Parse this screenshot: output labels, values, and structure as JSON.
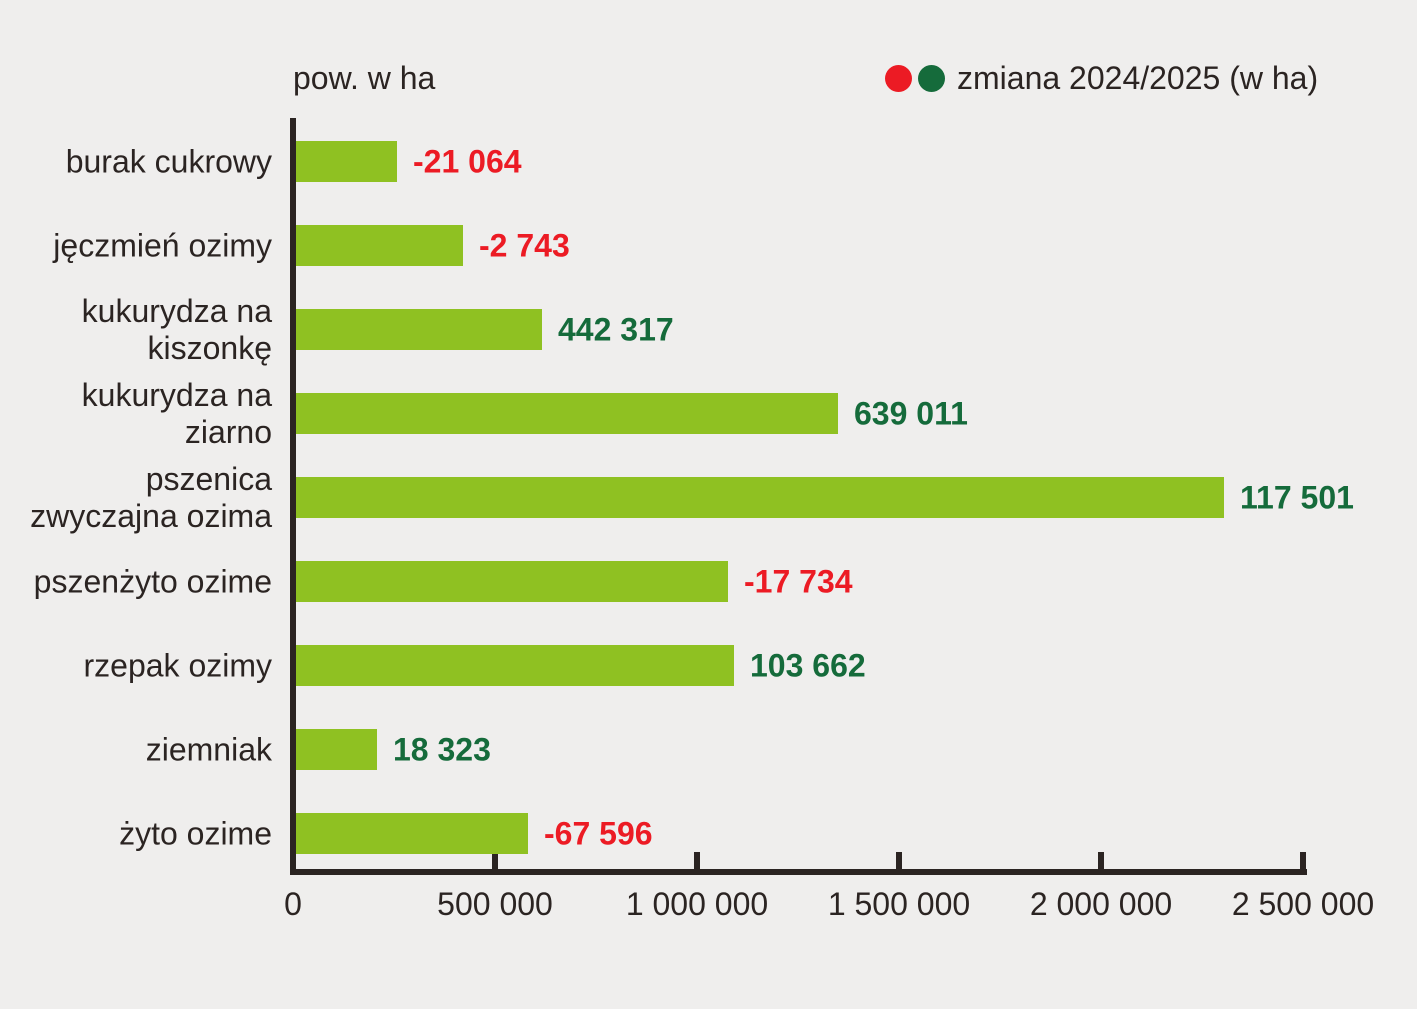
{
  "title": "pow. w ha",
  "legend": {
    "label": "zmiana 2024/2025 (w ha)"
  },
  "colors": {
    "background": "#efeeed",
    "bar": "#8fc122",
    "axis": "#2b2422",
    "negative": "#ec1b24",
    "positive": "#156b3b"
  },
  "chart_data": {
    "type": "bar",
    "orientation": "horizontal",
    "title": "pow. w ha",
    "legend_label": "zmiana 2024/2025 (w ha)",
    "legend_position": "top-right",
    "xlabel": "",
    "ylabel": "",
    "xlim": [
      0,
      2500000
    ],
    "grid": false,
    "x_tick_labels": [
      "0",
      "500 000",
      "1 000 000",
      "1 500 000",
      "2 000 000",
      "2 500 000"
    ],
    "x_tick_values": [
      0,
      500000,
      1000000,
      1500000,
      2000000,
      2500000
    ],
    "categories": [
      "burak cukrowy",
      "jęczmień ozimy",
      "kukurydza na kiszonkę",
      "kukurydza na ziarno",
      "pszenica zwyczajna ozima",
      "pszenżyto ozime",
      "rzepak ozimy",
      "ziemniak",
      "żyto ozime"
    ],
    "category_lines": [
      [
        "burak cukrowy"
      ],
      [
        "jęczmień ozimy"
      ],
      [
        "kukurydza na",
        "kiszonkę"
      ],
      [
        "kukurydza na",
        "ziarno"
      ],
      [
        "pszenica",
        "zwyczajna ozima"
      ],
      [
        "pszenżyto ozime"
      ],
      [
        "rzepak ozimy"
      ],
      [
        "ziemniak"
      ],
      [
        "żyto ozime"
      ]
    ],
    "bar_values_ha_estimated": [
      250000,
      413000,
      609000,
      1342000,
      2297000,
      1069000,
      1084000,
      200000,
      574000
    ],
    "change_labels": [
      "-21 064",
      "-2 743",
      "442 317",
      "639 011",
      "117 501",
      "-17 734",
      "103 662",
      "18 323",
      "-67 596"
    ],
    "change_values": [
      -21064,
      -2743,
      442317,
      639011,
      117501,
      -17734,
      103662,
      18323,
      -67596
    ]
  }
}
